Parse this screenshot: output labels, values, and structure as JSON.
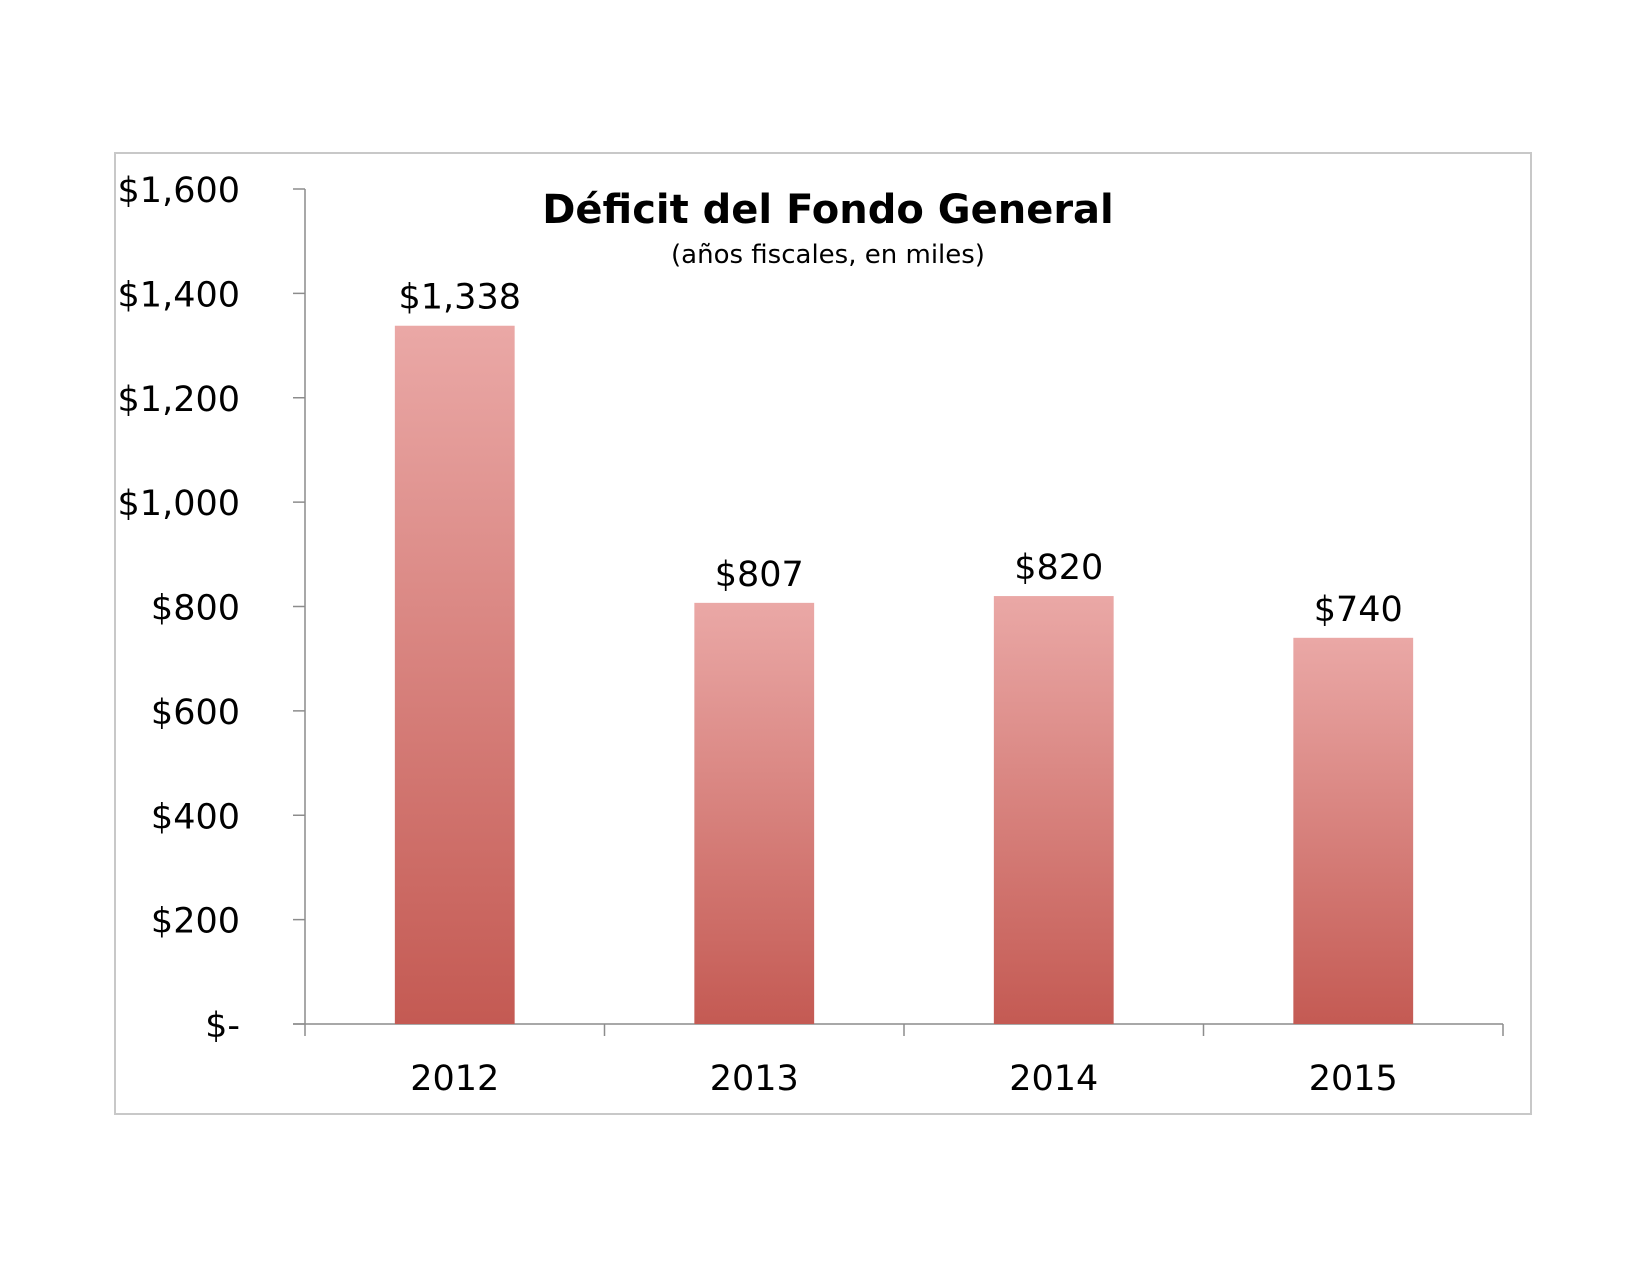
{
  "chart_data": {
    "type": "bar",
    "title": "Déficit del Fondo General",
    "subtitle": "(años fiscales, en miles)",
    "xlabel": "",
    "ylabel": "",
    "categories": [
      "2012",
      "2013",
      "2014",
      "2015"
    ],
    "values": [
      1338,
      807,
      820,
      740
    ],
    "data_labels": [
      "$1,338",
      "$807",
      "$820",
      "$740"
    ],
    "ylim": [
      0,
      1600
    ],
    "y_ticks": [
      0,
      200,
      400,
      600,
      800,
      1000,
      1200,
      1400,
      1600
    ],
    "y_tick_labels": [
      "$-",
      "$200",
      "$400",
      "$600",
      "$800",
      "$1,000",
      "$1,200",
      "$1,400",
      "$1,600"
    ],
    "grid": false,
    "legend": "none",
    "colors": {
      "bar_top": "#eaa8a6",
      "bar_bottom": "#c45a53",
      "axis": "#8c8c8c",
      "frame": "#c8c8c8"
    }
  }
}
